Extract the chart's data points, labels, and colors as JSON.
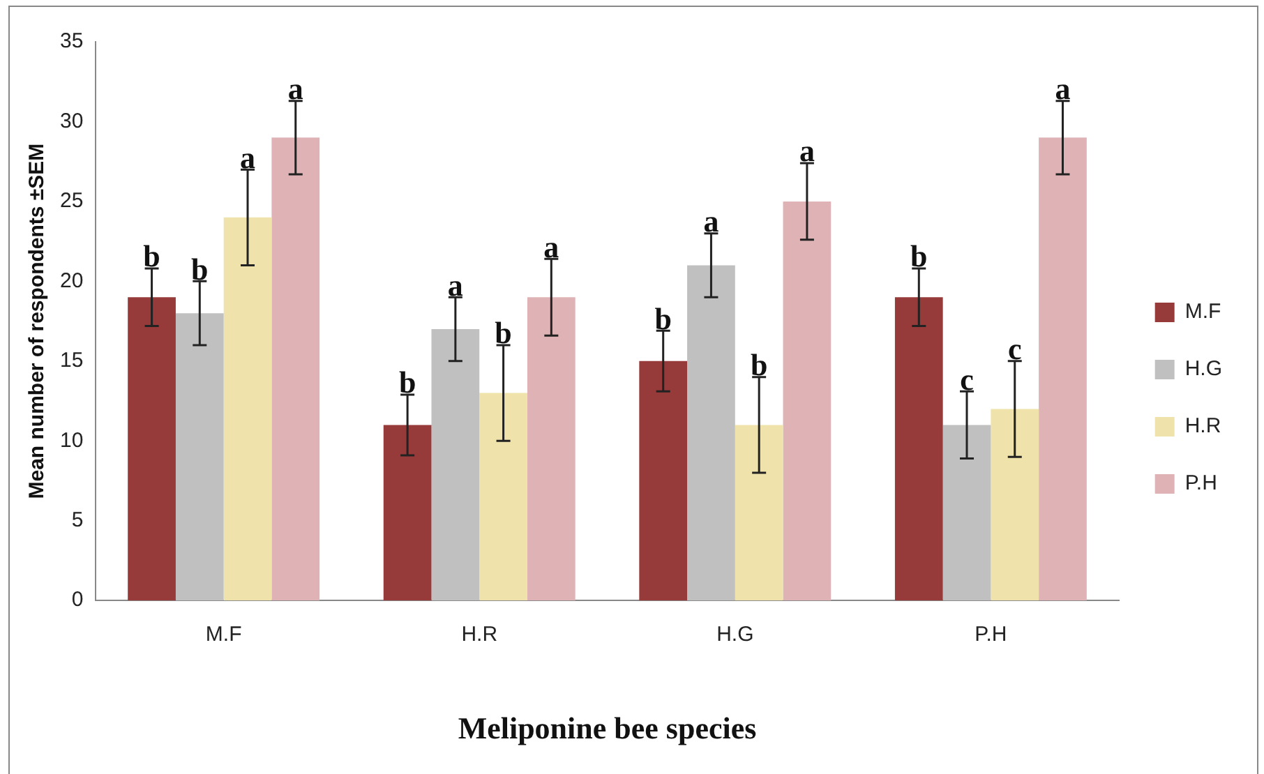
{
  "chart_data": {
    "type": "bar",
    "xlabel": "Meliponine bee species",
    "ylabel": "Mean number of respondents ±SEM",
    "categories": [
      "M.F",
      "H.R",
      "H.G",
      "P.H"
    ],
    "series": [
      {
        "name": "M.F",
        "color": "#963a3a",
        "values": [
          19,
          11,
          15,
          19
        ],
        "errors": [
          1.8,
          1.9,
          1.9,
          1.8
        ],
        "value_labels": [
          "b",
          "b",
          "b",
          "b"
        ]
      },
      {
        "name": "H.G",
        "color": "#c0c0c0",
        "values": [
          18,
          17,
          21,
          11
        ],
        "errors": [
          2,
          2,
          2,
          2.1
        ],
        "value_labels": [
          "b",
          "a",
          "a",
          "c"
        ]
      },
      {
        "name": "H.R",
        "color": "#efe3ab",
        "values": [
          24,
          13,
          11,
          12
        ],
        "errors": [
          3,
          3,
          3,
          3
        ],
        "value_labels": [
          "a",
          "b",
          "b",
          "c"
        ]
      },
      {
        "name": "P.H",
        "color": "#dfb3b5",
        "values": [
          29,
          19,
          25,
          29
        ],
        "errors": [
          2.3,
          2.4,
          2.4,
          2.3
        ],
        "value_labels": [
          "a",
          "a",
          "a",
          "a"
        ]
      }
    ],
    "ylim": [
      0,
      35
    ],
    "yticks": [
      0,
      5,
      10,
      15,
      20,
      25,
      30,
      35
    ],
    "grid": false,
    "legend": "right"
  }
}
